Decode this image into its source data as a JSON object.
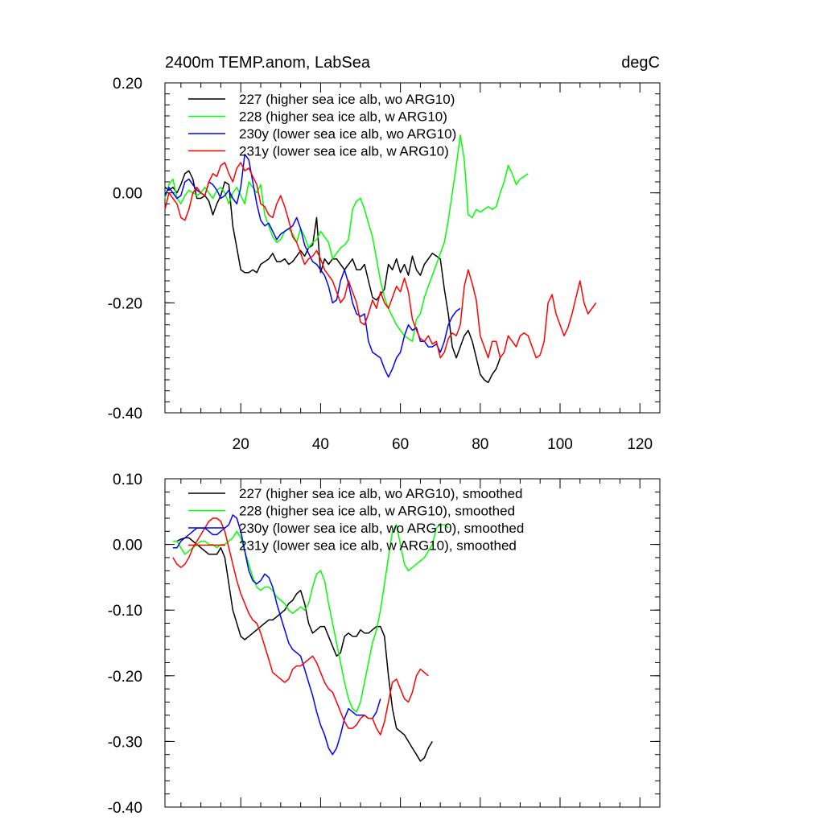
{
  "chart_data": [
    {
      "type": "line",
      "title": "2400m TEMP.anom, LabSea",
      "units": "degC",
      "xlim": [
        1,
        125
      ],
      "ylim": [
        -0.4,
        0.2
      ],
      "yticks": [
        -0.4,
        -0.2,
        0.0,
        0.2
      ],
      "ytick_labels": [
        "-0.40",
        "-0.20",
        "0.00",
        "0.20"
      ],
      "xticks": [
        20,
        40,
        60,
        80,
        100,
        120
      ],
      "xtick_labels": [
        "20",
        "40",
        "60",
        "80",
        "100",
        "120"
      ],
      "legend_position": "top-left",
      "series": [
        {
          "name": "227 (higher sea ice alb, wo ARG10)",
          "color": "#000000",
          "x0": 1,
          "values": [
            0.01,
            0.005,
            0.01,
            0.0,
            0.015,
            0.035,
            0.04,
            0.025,
            -0.01,
            -0.01,
            -0.005,
            -0.015,
            -0.04,
            -0.02,
            -0.005,
            0.02,
            0.015,
            -0.06,
            -0.1,
            -0.14,
            -0.145,
            -0.145,
            -0.14,
            -0.145,
            -0.13,
            -0.125,
            -0.12,
            -0.11,
            -0.125,
            -0.125,
            -0.12,
            -0.13,
            -0.125,
            -0.115,
            -0.105,
            -0.115,
            -0.1,
            -0.095,
            -0.045,
            -0.145,
            -0.12,
            -0.13,
            -0.12,
            -0.12,
            -0.13,
            -0.14,
            -0.13,
            -0.12,
            -0.14,
            -0.14,
            -0.13,
            -0.16,
            -0.19,
            -0.195,
            -0.185,
            -0.175,
            -0.13,
            -0.14,
            -0.12,
            -0.145,
            -0.13,
            -0.15,
            -0.115,
            -0.14,
            -0.15,
            -0.13,
            -0.12,
            -0.11,
            -0.115,
            -0.12,
            -0.175,
            -0.22,
            -0.28,
            -0.3,
            -0.28,
            -0.26,
            -0.25,
            -0.27,
            -0.3,
            -0.33,
            -0.34,
            -0.345,
            -0.33,
            -0.32,
            -0.3
          ]
        },
        {
          "name": "228 (higher sea ice alb, w ARG10)",
          "color": "#00FF00",
          "x0": 1,
          "values": [
            -0.01,
            0.015,
            0.025,
            -0.01,
            -0.02,
            -0.005,
            0.005,
            0.0,
            -0.005,
            0.0,
            0.01,
            0.0,
            -0.01,
            0.005,
            0.01,
            0.0,
            -0.02,
            0.0,
            0.01,
            -0.005,
            -0.02,
            0.02,
            0.01,
            0.0,
            0.015,
            -0.04,
            -0.06,
            -0.08,
            -0.09,
            -0.085,
            -0.07,
            -0.065,
            -0.075,
            -0.09,
            -0.065,
            -0.08,
            -0.1,
            -0.09,
            -0.085,
            -0.07,
            -0.08,
            -0.09,
            -0.12,
            -0.11,
            -0.1,
            -0.095,
            -0.085,
            -0.03,
            -0.015,
            -0.01,
            -0.03,
            -0.055,
            -0.08,
            -0.12,
            -0.16,
            -0.19,
            -0.21,
            -0.225,
            -0.24,
            -0.25,
            -0.26,
            -0.265,
            -0.27,
            -0.23,
            -0.22,
            -0.19,
            -0.17,
            -0.15,
            -0.13,
            -0.11,
            -0.09,
            -0.05,
            0.0,
            0.05,
            0.105,
            0.06,
            -0.04,
            -0.045,
            -0.03,
            -0.035,
            -0.03,
            -0.025,
            -0.03,
            -0.025,
            0.0,
            0.02,
            0.05,
            0.035,
            0.015,
            0.025,
            0.03,
            0.035
          ]
        },
        {
          "name": "230y (lower sea ice alb, wo ARG10)",
          "color": "#0000FF",
          "x0": 1,
          "values": [
            -0.005,
            0.01,
            0.0,
            -0.01,
            -0.005,
            0.02,
            0.025,
            0.015,
            0.005,
            0.0,
            -0.005,
            0.02,
            0.015,
            0.005,
            -0.01,
            -0.005,
            0.005,
            -0.01,
            -0.02,
            0.01,
            0.07,
            0.06,
            0.02,
            -0.02,
            -0.05,
            -0.06,
            -0.055,
            -0.07,
            -0.085,
            -0.075,
            -0.07,
            -0.065,
            -0.06,
            -0.045,
            -0.065,
            -0.095,
            -0.11,
            -0.125,
            -0.13,
            -0.14,
            -0.15,
            -0.17,
            -0.2,
            -0.195,
            -0.16,
            -0.14,
            -0.165,
            -0.2,
            -0.22,
            -0.225,
            -0.22,
            -0.27,
            -0.29,
            -0.295,
            -0.3,
            -0.32,
            -0.335,
            -0.32,
            -0.3,
            -0.29,
            -0.26,
            -0.24,
            -0.25,
            -0.245,
            -0.27,
            -0.27,
            -0.28,
            -0.28,
            -0.275,
            -0.29,
            -0.27,
            -0.24,
            -0.225,
            -0.215,
            -0.21
          ]
        },
        {
          "name": "231y (lower sea ice alb, w ARG10)",
          "color": "#FF0000",
          "x0": 1,
          "values": [
            -0.03,
            0.0,
            -0.01,
            -0.02,
            -0.045,
            -0.05,
            -0.03,
            0.0,
            0.01,
            0.0,
            -0.005,
            0.02,
            0.035,
            0.03,
            0.05,
            0.055,
            0.035,
            0.02,
            0.045,
            0.055,
            0.04,
            0.045,
            0.03,
            0.015,
            -0.02,
            -0.025,
            -0.04,
            -0.045,
            -0.02,
            -0.005,
            -0.025,
            -0.05,
            -0.08,
            -0.09,
            -0.11,
            -0.13,
            -0.12,
            -0.115,
            -0.105,
            -0.12,
            -0.14,
            -0.15,
            -0.16,
            -0.18,
            -0.2,
            -0.19,
            -0.16,
            -0.18,
            -0.2,
            -0.235,
            -0.24,
            -0.22,
            -0.195,
            -0.21,
            -0.18,
            -0.2,
            -0.21,
            -0.19,
            -0.17,
            -0.18,
            -0.155,
            -0.18,
            -0.23,
            -0.25,
            -0.265,
            -0.27,
            -0.26,
            -0.275,
            -0.27,
            -0.3,
            -0.29,
            -0.265,
            -0.255,
            -0.26,
            -0.24,
            -0.17,
            -0.14,
            -0.165,
            -0.195,
            -0.26,
            -0.28,
            -0.3,
            -0.27,
            -0.27,
            -0.3,
            -0.29,
            -0.26,
            -0.27,
            -0.28,
            -0.26,
            -0.255,
            -0.26,
            -0.28,
            -0.3,
            -0.295,
            -0.27,
            -0.2,
            -0.185,
            -0.22,
            -0.24,
            -0.26,
            -0.245,
            -0.22,
            -0.19,
            -0.16,
            -0.2,
            -0.22,
            -0.21,
            -0.2
          ]
        }
      ]
    },
    {
      "type": "line",
      "title": "",
      "xlim": [
        1,
        125
      ],
      "ylim": [
        -0.4,
        0.1
      ],
      "yticks": [
        -0.4,
        -0.3,
        -0.2,
        -0.1,
        0.0,
        0.1
      ],
      "ytick_labels": [
        "-0.40",
        "-0.30",
        "-0.20",
        "-0.10",
        "0.00",
        "0.10"
      ],
      "xticks": [
        20,
        40,
        60,
        80,
        100,
        120
      ],
      "xtick_labels": [],
      "legend_position": "top-left",
      "series": [
        {
          "name": "227 (higher sea ice alb, wo ARG10), smoothed",
          "color": "#000000",
          "x0": 4,
          "values": [
            0.005,
            0.008,
            0.01,
            0.01,
            0.005,
            0.0,
            -0.005,
            -0.01,
            -0.015,
            -0.015,
            -0.015,
            -0.005,
            -0.02,
            -0.06,
            -0.1,
            -0.12,
            -0.14,
            -0.145,
            -0.14,
            -0.135,
            -0.13,
            -0.125,
            -0.12,
            -0.115,
            -0.115,
            -0.11,
            -0.105,
            -0.1,
            -0.09,
            -0.085,
            -0.075,
            -0.07,
            -0.09,
            -0.12,
            -0.135,
            -0.13,
            -0.125,
            -0.125,
            -0.14,
            -0.155,
            -0.17,
            -0.165,
            -0.14,
            -0.135,
            -0.14,
            -0.14,
            -0.13,
            -0.135,
            -0.135,
            -0.13,
            -0.125,
            -0.125,
            -0.14,
            -0.2,
            -0.25,
            -0.28,
            -0.285,
            -0.29,
            -0.3,
            -0.31,
            -0.32,
            -0.33,
            -0.325,
            -0.31,
            -0.3
          ]
        },
        {
          "name": "228 (higher sea ice alb, w ARG10), smoothed",
          "color": "#00FF00",
          "x0": 3,
          "values": [
            0.005,
            0.005,
            -0.005,
            -0.015,
            -0.01,
            -0.005,
            0.0,
            0.005,
            0.005,
            0.0,
            0.0,
            -0.005,
            0.0,
            0.0,
            0.005,
            0.01,
            0.02,
            0.01,
            -0.01,
            -0.03,
            -0.05,
            -0.065,
            -0.07,
            -0.065,
            -0.065,
            -0.07,
            -0.08,
            -0.085,
            -0.09,
            -0.1,
            -0.105,
            -0.1,
            -0.095,
            -0.1,
            -0.09,
            -0.065,
            -0.045,
            -0.04,
            -0.055,
            -0.09,
            -0.12,
            -0.15,
            -0.18,
            -0.21,
            -0.235,
            -0.25,
            -0.255,
            -0.24,
            -0.21,
            -0.18,
            -0.15,
            -0.13,
            -0.1,
            -0.06,
            -0.02,
            0.02,
            0.03,
            0.0,
            -0.03,
            -0.04,
            -0.035,
            -0.03,
            -0.025,
            -0.02,
            -0.01,
            0.0,
            0.025,
            0.03,
            0.03,
            0.025
          ]
        },
        {
          "name": "230y (lower sea ice alb, wo ARG10), smoothed",
          "color": "#0000FF",
          "x0": 3,
          "values": [
            -0.005,
            -0.005,
            0.005,
            0.01,
            0.015,
            0.02,
            0.025,
            0.025,
            0.025,
            0.02,
            0.015,
            0.015,
            0.02,
            0.025,
            0.03,
            0.045,
            0.04,
            0.02,
            -0.01,
            -0.04,
            -0.055,
            -0.06,
            -0.055,
            -0.045,
            -0.05,
            -0.065,
            -0.09,
            -0.11,
            -0.13,
            -0.15,
            -0.16,
            -0.165,
            -0.17,
            -0.19,
            -0.21,
            -0.23,
            -0.255,
            -0.275,
            -0.29,
            -0.31,
            -0.32,
            -0.31,
            -0.29,
            -0.265,
            -0.25,
            -0.255,
            -0.26,
            -0.26,
            -0.26,
            -0.265,
            -0.265,
            -0.255,
            -0.235
          ]
        },
        {
          "name": "231y (lower sea ice alb, w ARG10), smoothed",
          "color": "#FF0000",
          "x0": 3,
          "values": [
            -0.02,
            -0.03,
            -0.035,
            -0.03,
            -0.02,
            -0.005,
            0.005,
            0.015,
            0.025,
            0.035,
            0.04,
            0.04,
            0.035,
            0.02,
            -0.005,
            -0.03,
            -0.055,
            -0.075,
            -0.09,
            -0.105,
            -0.115,
            -0.12,
            -0.135,
            -0.155,
            -0.175,
            -0.195,
            -0.2,
            -0.205,
            -0.21,
            -0.205,
            -0.19,
            -0.185,
            -0.185,
            -0.18,
            -0.175,
            -0.17,
            -0.18,
            -0.195,
            -0.21,
            -0.22,
            -0.225,
            -0.24,
            -0.255,
            -0.27,
            -0.28,
            -0.28,
            -0.275,
            -0.265,
            -0.26,
            -0.265,
            -0.265,
            -0.28,
            -0.29,
            -0.27,
            -0.24,
            -0.21,
            -0.205,
            -0.22,
            -0.235,
            -0.24,
            -0.225,
            -0.2,
            -0.19,
            -0.195,
            -0.2
          ]
        }
      ]
    }
  ]
}
